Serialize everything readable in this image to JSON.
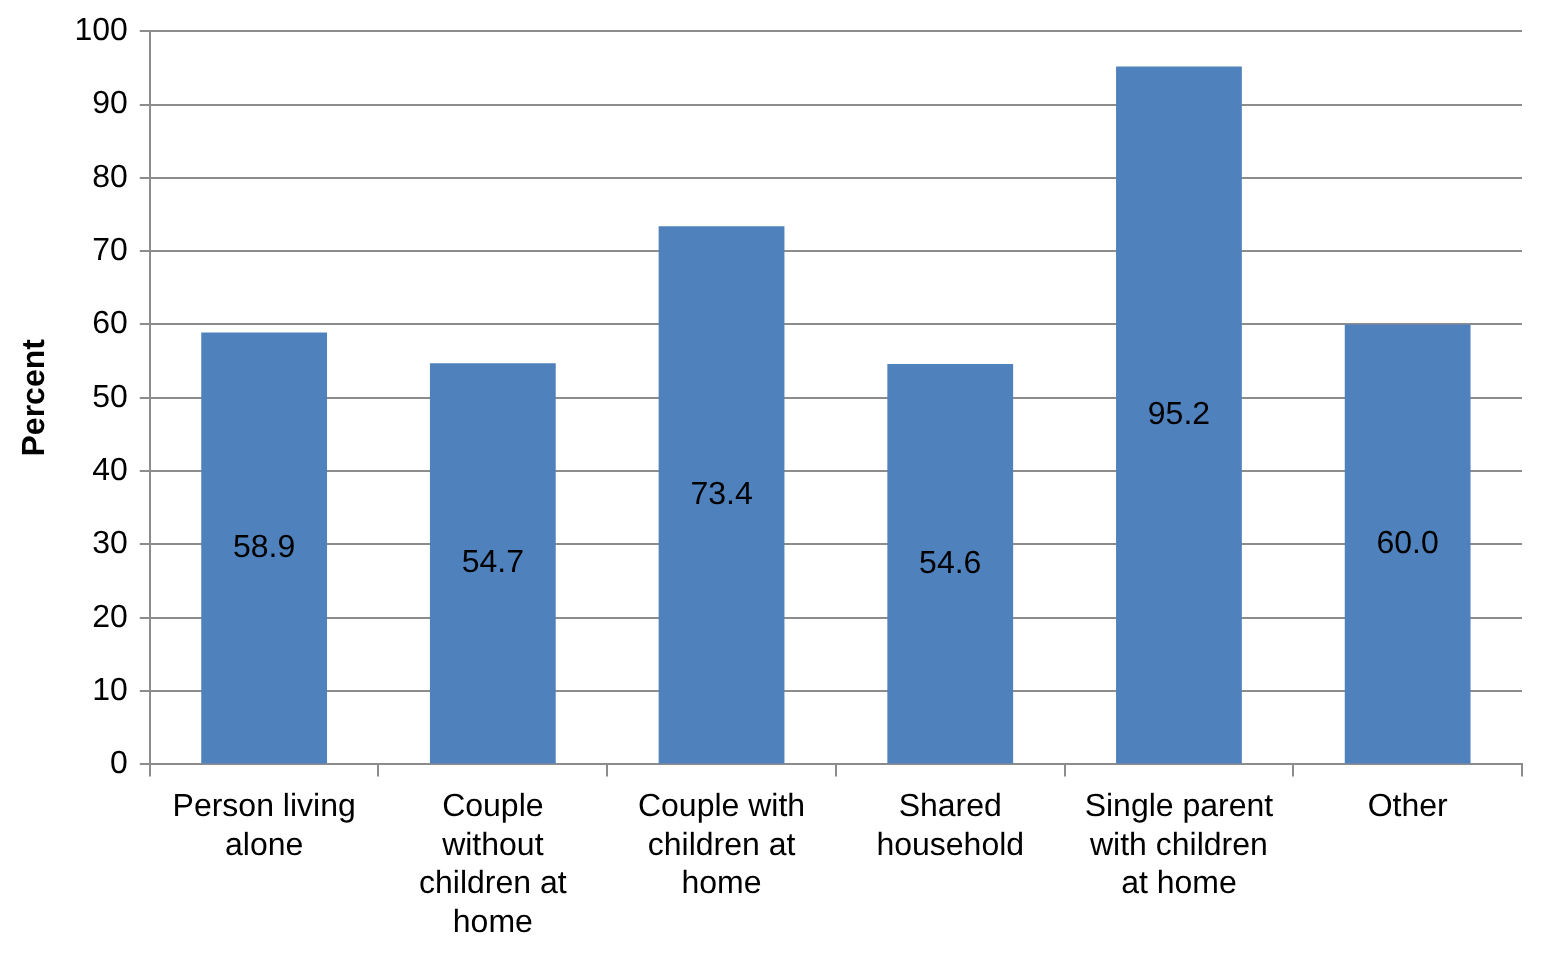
{
  "chart_data": {
    "type": "bar",
    "ylabel": "Percent",
    "categories": [
      "Person living alone",
      "Couple without children at home",
      "Couple with children at home",
      "Shared household",
      "Single parent with children at home",
      "Other"
    ],
    "values": [
      58.9,
      54.7,
      73.4,
      54.6,
      95.2,
      60.0
    ],
    "value_labels": [
      "58.9",
      "54.7",
      "73.4",
      "54.6",
      "95.2",
      "60.0"
    ],
    "color": "#4f81bd",
    "ylim": [
      0,
      100
    ],
    "yticks": [
      0,
      10,
      20,
      30,
      40,
      50,
      60,
      70,
      80,
      90,
      100
    ],
    "grid": "y",
    "legend": false
  }
}
